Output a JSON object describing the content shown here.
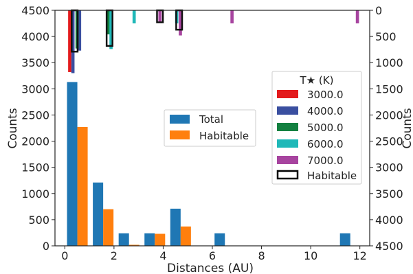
{
  "chart_data": {
    "type": "bar",
    "xlabel": "Distances (AU)",
    "ylabel_left": "Counts",
    "ylabel_right": "Counts",
    "xlim": [
      -0.4,
      12.4
    ],
    "ylim_left": [
      0,
      4500
    ],
    "ylim_right_inverted": [
      0,
      4500
    ],
    "xticks": [
      "0",
      "2",
      "4",
      "6",
      "8",
      "10",
      "12"
    ],
    "yticks_left": [
      "0",
      "500",
      "1000",
      "1500",
      "2000",
      "2500",
      "3000",
      "3500",
      "4000",
      "4500"
    ],
    "yticks_right": [
      "0",
      "500",
      "1000",
      "1500",
      "2000",
      "2500",
      "3000",
      "3500",
      "4000",
      "4500"
    ],
    "lower_panel": {
      "legend_position": "center",
      "series": [
        {
          "name": "Total",
          "color": "#1f77b4",
          "x": [
            0.3,
            1.35,
            2.4,
            3.45,
            4.5,
            6.3,
            11.4
          ],
          "values": [
            3130,
            1210,
            240,
            240,
            710,
            240,
            240
          ]
        },
        {
          "name": "Habitable",
          "color": "#ff7f0e",
          "x": [
            0.72,
            1.77,
            2.82,
            3.87,
            4.92
          ],
          "values": [
            2270,
            700,
            20,
            230,
            370
          ]
        }
      ]
    },
    "upper_panel": {
      "legend_title": "T★ (K)",
      "legend_position": "right",
      "series": [
        {
          "name": "3000.0",
          "color": "#e31a1c",
          "x": [
            0.2
          ],
          "values": [
            1180
          ]
        },
        {
          "name": "4000.0",
          "color": "#3a4fa0",
          "x": [
            0.33,
            0.6
          ],
          "values": [
            1200,
            770
          ]
        },
        {
          "name": "5000.0",
          "color": "#138040",
          "x": [
            0.5,
            1.76
          ],
          "values": [
            730,
            460
          ]
        },
        {
          "name": "6000.0",
          "color": "#1fb8b8",
          "x": [
            1.88,
            2.82,
            4.55
          ],
          "values": [
            740,
            250,
            250
          ]
        },
        {
          "name": "7000.0",
          "color": "#a7449f",
          "x": [
            3.87,
            4.7,
            6.8,
            11.9
          ],
          "values": [
            230,
            480,
            250,
            250
          ]
        },
        {
          "name": "Habitable",
          "color": "#000000",
          "outline": true,
          "x": [
            0.4,
            1.82,
            3.87,
            4.65
          ],
          "values": [
            790,
            680,
            230,
            370
          ]
        }
      ]
    }
  }
}
